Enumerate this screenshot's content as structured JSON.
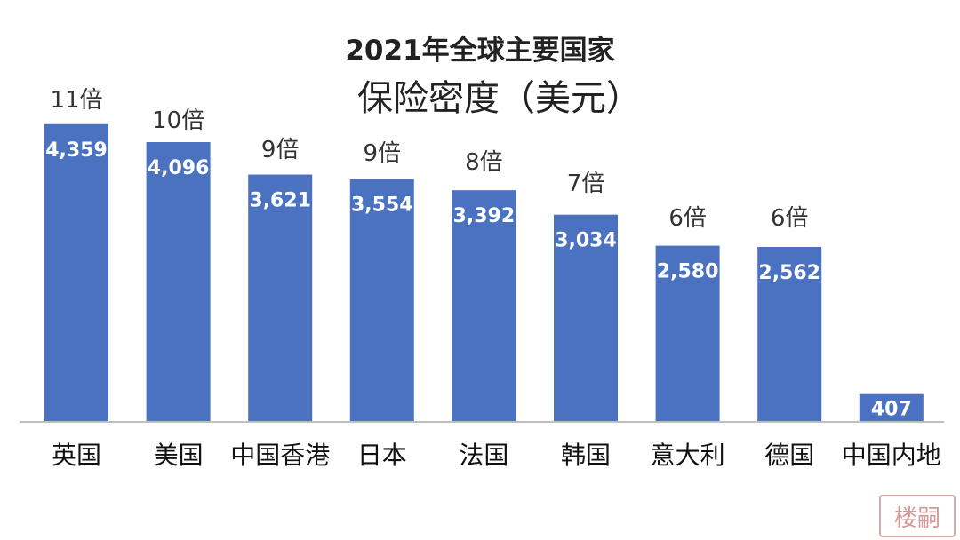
{
  "chart_data": {
    "type": "bar",
    "title": "2021年全球主要国家",
    "subtitle": "保险密度（美元）",
    "categories": [
      "英国",
      "美国",
      "中国香港",
      "日本",
      "法国",
      "韩国",
      "意大利",
      "德国",
      "中国内地"
    ],
    "values": [
      4359,
      4096,
      3621,
      3554,
      3392,
      3034,
      2580,
      2562,
      407
    ],
    "value_labels": [
      "4,359",
      "4,096",
      "3,621",
      "3,554",
      "3,392",
      "3,034",
      "2,580",
      "2,562",
      "407"
    ],
    "multiplier_labels": [
      "11倍",
      "10倍",
      "9倍",
      "9倍",
      "8倍",
      "7倍",
      "6倍",
      "6倍",
      ""
    ],
    "bar_color": "#4a72c0",
    "grid": false,
    "legend": false
  },
  "watermark": {
    "text": "楼嗣"
  }
}
